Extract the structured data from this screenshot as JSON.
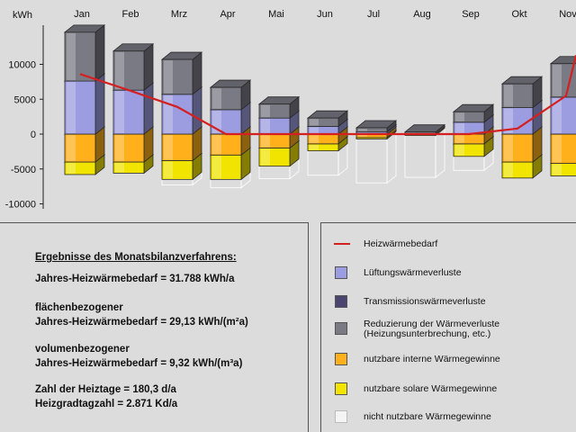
{
  "chart_data": {
    "type": "bar",
    "stacked": true,
    "ylabel": "kWh",
    "ylim": [
      -10000,
      15000
    ],
    "yticks": [
      10000,
      5000,
      0,
      -5000,
      -10000
    ],
    "ytick_labels": [
      "10000",
      "5000",
      "0",
      "-5000",
      "-10000"
    ],
    "categories": [
      "Jan",
      "Feb",
      "Mrz",
      "Apr",
      "Mai",
      "Jun",
      "Jul",
      "Aug",
      "Sep",
      "Okt",
      "Nov"
    ],
    "series": [
      {
        "name": "Transmissionswärmeverluste",
        "color": "#4a4670",
        "values": [
          0,
          0,
          0,
          0,
          0,
          0,
          0,
          0,
          0,
          0,
          0
        ]
      },
      {
        "name": "Lüftungswärmeverluste",
        "color": "#9c9ce0",
        "values": [
          7600,
          6300,
          5700,
          3500,
          2300,
          1100,
          300,
          0,
          1700,
          3800,
          5300
        ]
      },
      {
        "name": "Reduzierung der Wärmeverluste (Heizungsunterbrechung, etc.)",
        "color": "#7a7a84",
        "values": [
          7000,
          5600,
          5000,
          3200,
          2000,
          1200,
          600,
          300,
          1500,
          3400,
          4800
        ]
      },
      {
        "name": "nutzbare interne Wärmegewinne",
        "color": "#ffb01a",
        "values": [
          -4000,
          -4000,
          -3800,
          -3000,
          -2000,
          -1400,
          -500,
          -200,
          -1400,
          -4000,
          -4200
        ]
      },
      {
        "name": "nutzbare solare Wärmegewinne",
        "color": "#f0e400",
        "values": [
          -1800,
          -1600,
          -2700,
          -3500,
          -2600,
          -1000,
          -200,
          0,
          -1800,
          -2300,
          -1800
        ]
      },
      {
        "name": "nicht nutzbare Wärmegewinne",
        "color": "#f4f4f4",
        "values": [
          0,
          0,
          -800,
          -1200,
          -1800,
          -3500,
          -6300,
          -6000,
          -2000,
          0,
          0
        ]
      },
      {
        "name": "Heizwärmebedarf",
        "color": "#d42020",
        "type": "line",
        "values": [
          8600,
          6300,
          3900,
          0,
          0,
          0,
          0,
          0,
          0,
          800,
          5500
        ]
      }
    ],
    "grid": false,
    "legend_placement": "bottom-right panel"
  },
  "results": {
    "title": "Ergebnisse des Monatsbilanzverfahrens:",
    "lines": [
      "Jahres-Heizwärmebedarf = 31.788 kWh/a",
      "flächenbezogener",
      "Jahres-Heizwärmebedarf = 29,13 kWh/(m²a)",
      "volumenbezogener",
      "Jahres-Heizwärmebedarf = 9,32 kWh/(m³a)",
      "Zahl der Heiztage = 180,3 d/a",
      "Heizgradtagzahl = 2.871 Kd/a"
    ]
  },
  "legend": [
    {
      "label": "Heizwärmebedarf",
      "kind": "line",
      "color": "#d42020"
    },
    {
      "label": "Lüftungswärmeverluste",
      "kind": "box",
      "color": "#9c9ce0"
    },
    {
      "label": "Transmissionswärmeverluste",
      "kind": "box",
      "color": "#4a4670"
    },
    {
      "label": "Reduzierung der Wärmeverluste\n(Heizungsunterbrechung, etc.)",
      "kind": "box",
      "color": "#7a7a84"
    },
    {
      "label": "nutzbare interne Wärmegewinne",
      "kind": "box",
      "color": "#ffb01a"
    },
    {
      "label": "nutzbare solare Wärmegewinne",
      "kind": "box",
      "color": "#f0e400"
    },
    {
      "label": "nicht nutzbare Wärmegewinne",
      "kind": "box",
      "color": "#f4f4f4"
    }
  ]
}
